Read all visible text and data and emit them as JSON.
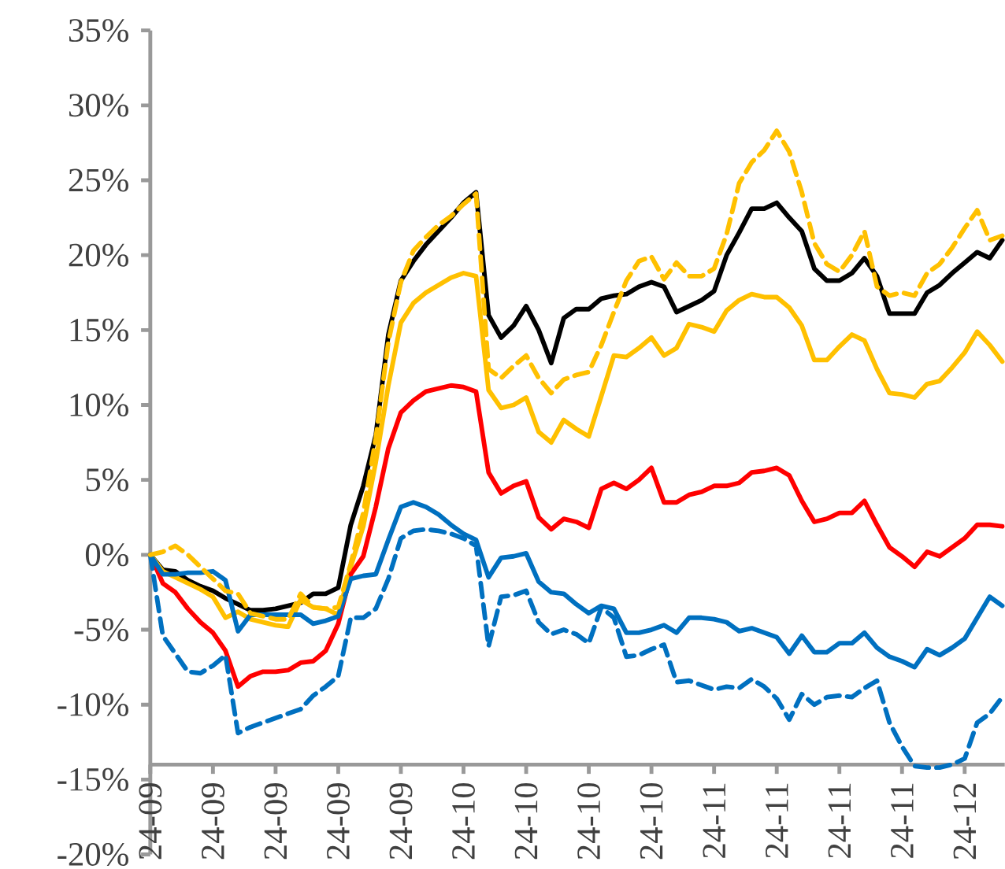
{
  "chart_data": {
    "type": "line",
    "categories": [
      "24-09",
      null,
      null,
      null,
      null,
      "24-09",
      null,
      null,
      null,
      null,
      "24-09",
      null,
      null,
      null,
      null,
      "24-09",
      null,
      null,
      null,
      null,
      "24-09",
      null,
      null,
      null,
      null,
      "24-10",
      null,
      null,
      null,
      null,
      "24-10",
      null,
      null,
      null,
      null,
      "24-10",
      null,
      null,
      null,
      null,
      "24-10",
      null,
      null,
      null,
      null,
      "24-11",
      null,
      null,
      null,
      null,
      "24-11",
      null,
      null,
      null,
      null,
      "24-11",
      null,
      null,
      null,
      null,
      "24-11",
      null,
      null,
      null,
      null,
      "24-12",
      null,
      null,
      null
    ],
    "ylim": [
      -20,
      35
    ],
    "yticks": [
      {
        "value": -20,
        "label": "-20%"
      },
      {
        "value": -15,
        "label": "-15%"
      },
      {
        "value": -10,
        "label": "-10%"
      },
      {
        "value": -5,
        "label": "-5%"
      },
      {
        "value": 0,
        "label": "0%"
      },
      {
        "value": 5,
        "label": "5%"
      },
      {
        "value": 10,
        "label": "10%"
      },
      {
        "value": 15,
        "label": "15%"
      },
      {
        "value": 20,
        "label": "20%"
      },
      {
        "value": 25,
        "label": "25%"
      },
      {
        "value": 30,
        "label": "30%"
      },
      {
        "value": 35,
        "label": "35%"
      }
    ],
    "series": [
      {
        "color": "#000000",
        "values": [
          0,
          -1.0,
          -1.1,
          -1.7,
          -2.1,
          -2.4,
          -2.9,
          -3.3,
          -3.7,
          -3.7,
          -3.6,
          -3.4,
          -3.2,
          -2.6,
          -2.6,
          -2.2,
          2.0,
          4.6,
          8.0,
          14.7,
          18.3,
          19.6,
          20.7,
          21.6,
          22.5,
          23.5,
          24.2,
          16.0,
          14.5,
          15.3,
          16.6,
          15.0,
          12.8,
          15.8,
          16.4,
          16.4,
          17.1,
          17.3,
          17.4,
          17.9,
          18.2,
          17.9,
          16.2,
          16.6,
          17.0,
          17.6,
          20.0,
          21.5,
          23.1,
          23.1,
          23.5,
          22.5,
          21.6,
          19.1,
          18.3,
          18.3,
          18.8,
          19.8,
          18.6,
          16.1,
          16.1,
          16.1,
          17.5,
          18.0,
          18.8,
          19.5,
          20.2,
          19.8,
          21.0
        ]
      },
      {
        "color": "#FFC000",
        "values": [
          0,
          -1.1,
          -1.5,
          -1.9,
          -2.3,
          -2.8,
          -4.2,
          -3.8,
          -4.3,
          -4.5,
          -4.7,
          -4.8,
          -3.0,
          -3.5,
          -3.6,
          -4.0,
          -0.8,
          1.9,
          6.2,
          11.3,
          15.5,
          16.8,
          17.5,
          18.0,
          18.5,
          18.8,
          18.6,
          11.0,
          9.8,
          10.0,
          10.5,
          8.2,
          7.5,
          9.0,
          8.4,
          7.9,
          10.6,
          13.3,
          13.2,
          13.8,
          14.5,
          13.3,
          13.8,
          15.4,
          15.2,
          14.9,
          16.3,
          17.0,
          17.4,
          17.2,
          17.2,
          16.5,
          15.3,
          13.0,
          13.0,
          13.9,
          14.7,
          14.3,
          12.4,
          10.8,
          10.7,
          10.5,
          11.4,
          11.6,
          12.5,
          13.5,
          14.9,
          14.0,
          12.9
        ]
      },
      {
        "color": "#FF0000",
        "values": [
          0,
          -1.9,
          -2.5,
          -3.6,
          -4.5,
          -5.2,
          -6.4,
          -8.8,
          -8.1,
          -7.8,
          -7.8,
          -7.7,
          -7.2,
          -7.1,
          -6.4,
          -4.6,
          -1.3,
          -0.1,
          3.2,
          7.1,
          9.5,
          10.3,
          10.9,
          11.1,
          11.3,
          11.2,
          10.9,
          5.5,
          4.1,
          4.6,
          4.9,
          2.5,
          1.7,
          2.4,
          2.2,
          1.8,
          4.4,
          4.8,
          4.4,
          5.0,
          5.8,
          3.5,
          3.5,
          4.0,
          4.2,
          4.6,
          4.6,
          4.8,
          5.5,
          5.6,
          5.8,
          5.3,
          3.6,
          2.2,
          2.4,
          2.8,
          2.8,
          3.6,
          2.0,
          0.5,
          -0.1,
          -0.8,
          0.2,
          -0.1,
          0.5,
          1.1,
          2.0,
          2.0,
          1.9
        ]
      },
      {
        "color": "#0070C0",
        "values": [
          0,
          -1.3,
          -1.3,
          -1.2,
          -1.2,
          -1.1,
          -1.7,
          -5.1,
          -4.0,
          -4.0,
          -4.0,
          -4.0,
          -4.0,
          -4.6,
          -4.4,
          -4.1,
          -1.6,
          -1.4,
          -1.3,
          1.0,
          3.2,
          3.5,
          3.2,
          2.7,
          2.0,
          1.4,
          1.0,
          -1.5,
          -0.2,
          -0.1,
          0.1,
          -1.8,
          -2.5,
          -2.6,
          -3.3,
          -3.9,
          -3.4,
          -3.6,
          -5.2,
          -5.2,
          -5.0,
          -4.7,
          -5.2,
          -4.2,
          -4.2,
          -4.3,
          -4.5,
          -5.1,
          -4.9,
          -5.2,
          -5.5,
          -6.6,
          -5.4,
          -6.5,
          -6.5,
          -5.9,
          -5.9,
          -5.2,
          -6.2,
          -6.8,
          -7.1,
          -7.5,
          -6.3,
          -6.7,
          -6.2,
          -5.6,
          -4.2,
          -2.8,
          -3.4
        ]
      },
      {
        "color": "#0070C0",
        "line_style": "dashed",
        "values": [
          0,
          -5.4,
          -6.6,
          -7.8,
          -7.9,
          -7.4,
          -6.7,
          -11.9,
          -11.5,
          -11.2,
          -10.9,
          -10.6,
          -10.3,
          -9.4,
          -8.8,
          -8.1,
          -4.2,
          -4.2,
          -3.6,
          -1.6,
          1.1,
          1.6,
          1.7,
          1.6,
          1.4,
          1.1,
          0.6,
          -6.1,
          -2.8,
          -2.7,
          -2.4,
          -4.5,
          -5.3,
          -5.0,
          -5.3,
          -5.9,
          -3.5,
          -4.2,
          -6.8,
          -6.7,
          -6.3,
          -6.0,
          -8.5,
          -8.4,
          -8.7,
          -9.0,
          -8.8,
          -8.9,
          -8.3,
          -8.8,
          -9.6,
          -11.0,
          -9.3,
          -10.0,
          -9.5,
          -9.4,
          -9.5,
          -8.9,
          -8.4,
          -11.2,
          -12.8,
          -14.1,
          -14.2,
          -14.2,
          -14.0,
          -13.6,
          -11.2,
          -10.6,
          -9.5
        ]
      },
      {
        "color": "#FFC000",
        "line_style": "dashed",
        "values": [
          0,
          0.2,
          0.6,
          0.0,
          -0.8,
          -1.6,
          -2.4,
          -2.6,
          -3.9,
          -4.1,
          -4.3,
          -4.3,
          -2.6,
          -3.5,
          -3.6,
          -3.5,
          -0.6,
          2.8,
          7.8,
          14.2,
          18.2,
          20.3,
          21.2,
          22.0,
          22.6,
          23.4,
          24.1,
          12.4,
          11.8,
          12.6,
          13.3,
          11.8,
          10.8,
          11.7,
          12.0,
          12.2,
          14.0,
          16.2,
          18.3,
          19.6,
          19.9,
          18.4,
          19.5,
          18.6,
          18.6,
          19.1,
          21.4,
          24.8,
          26.2,
          27.0,
          28.3,
          26.9,
          24.2,
          20.8,
          19.4,
          18.9,
          20.0,
          21.6,
          17.9,
          17.3,
          17.5,
          17.3,
          18.8,
          19.4,
          20.5,
          21.8,
          23.0,
          21.0,
          21.3
        ]
      }
    ]
  }
}
